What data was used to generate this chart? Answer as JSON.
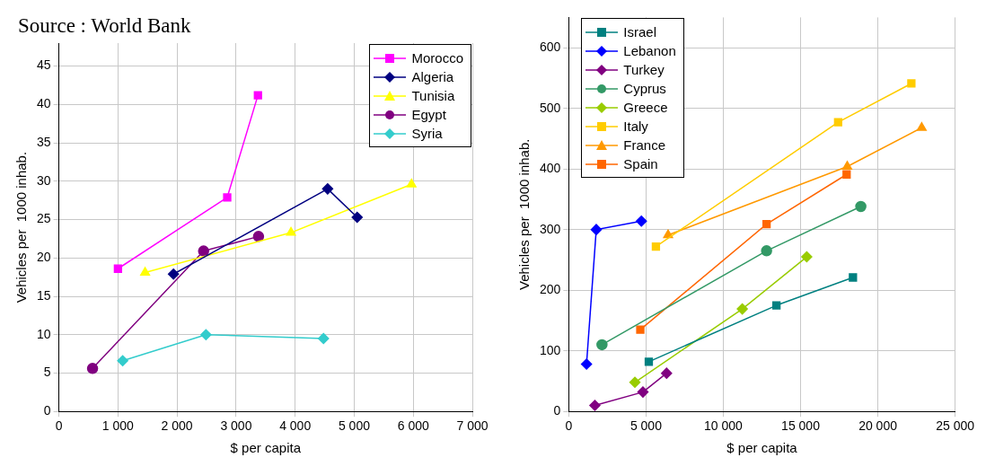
{
  "chart_data": [
    {
      "type": "line",
      "xlabel": "$ per capita",
      "ylabel": "Vehicles per  1000 inhab.",
      "annotations": [
        "Source : World Bank"
      ],
      "xlim": [
        0,
        7000
      ],
      "ylim": [
        0,
        48
      ],
      "xticks": [
        0,
        {
          "value": 1000,
          "label": "1 000"
        },
        {
          "value": 2000,
          "label": "2 000"
        },
        {
          "value": 3000,
          "label": "3 000"
        },
        {
          "value": 4000,
          "label": "4 000"
        },
        {
          "value": 5000,
          "label": "5 000"
        },
        {
          "value": 6000,
          "label": "6 000"
        },
        {
          "value": 7000,
          "label": "7 000"
        }
      ],
      "yticks": [
        0,
        5,
        10,
        15,
        20,
        25,
        30,
        35,
        40,
        45
      ],
      "grid": true,
      "legend": "top right",
      "series": [
        {
          "name": "Morocco",
          "color": "#ff00ff",
          "marker": "square",
          "x": [
            1000,
            2850,
            3370
          ],
          "values": [
            18.6,
            27.9,
            41.2
          ]
        },
        {
          "name": "Algeria",
          "color": "#000080",
          "marker": "diamond",
          "x": [
            1940,
            4550,
            5050
          ],
          "values": [
            17.9,
            29.0,
            25.3
          ]
        },
        {
          "name": "Tunisia",
          "color": "#ffff00",
          "marker": "triangle",
          "x": [
            1460,
            3930,
            5970
          ],
          "values": [
            18.1,
            23.3,
            29.6
          ]
        },
        {
          "name": "Egypt",
          "color": "#800080",
          "marker": "circle",
          "x": [
            570,
            2450,
            3380
          ],
          "values": [
            5.6,
            20.9,
            22.8
          ]
        },
        {
          "name": "Syria",
          "color": "#33cccc",
          "marker": "diamond",
          "x": [
            1080,
            2490,
            4480
          ],
          "values": [
            6.6,
            10.0,
            9.5
          ]
        }
      ]
    },
    {
      "type": "line",
      "xlabel": "$ per capita",
      "ylabel": "Vehicles per  1000 inhab.",
      "xlim": [
        0,
        25000
      ],
      "ylim": [
        0,
        650
      ],
      "xticks": [
        0,
        {
          "value": 5000,
          "label": "5 000"
        },
        {
          "value": 10000,
          "label": "10 000"
        },
        {
          "value": 15000,
          "label": "15 000"
        },
        {
          "value": 20000,
          "label": "20 000"
        },
        {
          "value": 25000,
          "label": "25 000"
        }
      ],
      "yticks": [
        0,
        100,
        200,
        300,
        400,
        500,
        600
      ],
      "grid": true,
      "legend": "top left",
      "series": [
        {
          "name": "Israel",
          "color": "#008080",
          "marker": "square",
          "x": [
            5180,
            13440,
            18390
          ],
          "values": [
            82,
            175,
            221
          ]
        },
        {
          "name": "Lebanon",
          "color": "#0000ff",
          "marker": "diamond",
          "x": [
            1150,
            1780,
            4700
          ],
          "values": [
            78,
            300,
            314
          ]
        },
        {
          "name": "Turkey",
          "color": "#800080",
          "marker": "diamond",
          "x": [
            1690,
            4800,
            6330
          ],
          "values": [
            10,
            32,
            63
          ]
        },
        {
          "name": "Cyprus",
          "color": "#339966",
          "marker": "circle",
          "x": [
            2150,
            12800,
            18900
          ],
          "values": [
            110,
            265,
            338
          ]
        },
        {
          "name": "Greece",
          "color": "#99cc00",
          "marker": "diamond",
          "x": [
            4280,
            11230,
            15400
          ],
          "values": [
            48,
            169,
            255
          ]
        },
        {
          "name": "Italy",
          "color": "#ffcc00",
          "marker": "square",
          "x": [
            5640,
            17430,
            22170
          ],
          "values": [
            272,
            477,
            541
          ]
        },
        {
          "name": "France",
          "color": "#ff9900",
          "marker": "triangle",
          "x": [
            6430,
            18020,
            22840
          ],
          "values": [
            291,
            404,
            468
          ]
        },
        {
          "name": "Spain",
          "color": "#ff6600",
          "marker": "square",
          "x": [
            4630,
            12800,
            17980
          ],
          "values": [
            135,
            309,
            391
          ]
        }
      ]
    }
  ]
}
